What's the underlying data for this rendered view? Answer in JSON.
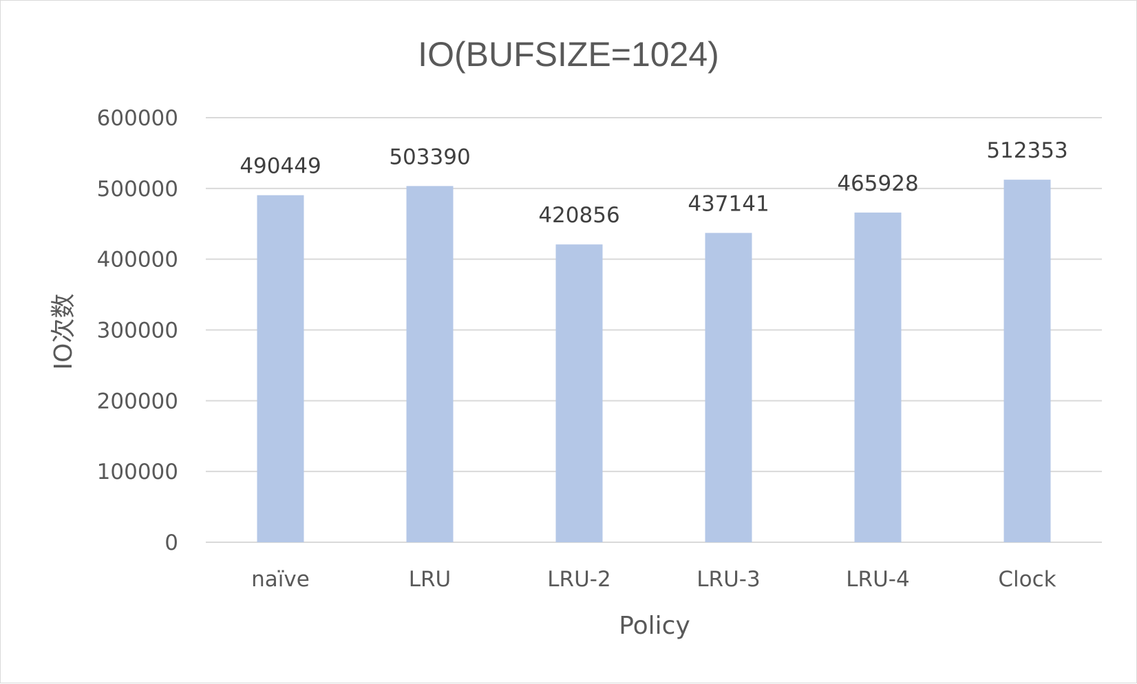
{
  "chart_data": {
    "type": "bar",
    "title": "IO(BUFSIZE=1024)",
    "xlabel": "Policy",
    "ylabel": "IO次数",
    "categories": [
      "naïve",
      "LRU",
      "LRU-2",
      "LRU-3",
      "LRU-4",
      "Clock"
    ],
    "values": [
      490449,
      503390,
      420856,
      437141,
      465928,
      512353
    ],
    "ylim": [
      0,
      600000
    ],
    "yticks": [
      0,
      100000,
      200000,
      300000,
      400000,
      500000,
      600000
    ],
    "grid": true,
    "legend": "none",
    "bar_color": "#b4c7e7"
  }
}
